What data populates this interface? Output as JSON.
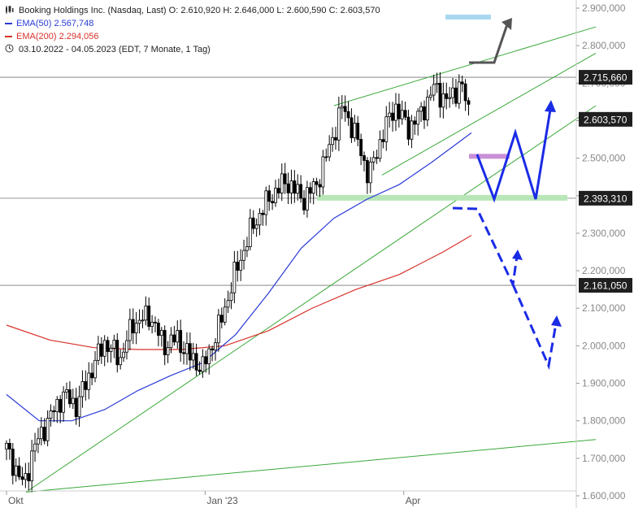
{
  "legend": {
    "title": "Booking Holdings Inc. (Nasdaq, Last)  O: 2.610,920  H: 2.646,000  L: 2.600,590  C: 2.603,570",
    "ema50": "EMA(50)  2.567,748",
    "ema200": "EMA(200)  2.294,056",
    "period": "03.10.2022 - 04.05.2023   (EDT, 7 Monate, 1 Tag)",
    "chart_icon": "candlestick-icon",
    "clock_icon": "clock-icon"
  },
  "colors": {
    "up": "#ffffff",
    "down": "#000000",
    "ema50": "#2a3bd8",
    "ema200": "#d8312a",
    "trend": "#3aa83a",
    "scenario_up": "#1a2be6",
    "scenario_down": "#1a2be6",
    "arrow_gray": "#555555",
    "target_box": "#a8d8f0",
    "zone_purple": "#c890d8",
    "zone_green": "#b8e6b8"
  },
  "chart_data": {
    "type": "candlestick",
    "title": "Booking Holdings Inc. (Nasdaq, Last)",
    "ylim": [
      1600000,
      2900000
    ],
    "y_ticks": [
      "2.900,000",
      "2.800,000",
      "2.700,000",
      "2.600,000",
      "2.500,000",
      "2.400,000",
      "2.300,000",
      "2.200,000",
      "2.100,000",
      "2.000,000",
      "1.900,000",
      "1.800,000",
      "1.700,000",
      "1.600,000"
    ],
    "y_tick_values": [
      2900000,
      2800000,
      2700000,
      2600000,
      2500000,
      2400000,
      2300000,
      2200000,
      2100000,
      2000000,
      1900000,
      1800000,
      1700000,
      1600000
    ],
    "x_ticks": [
      "Okt",
      "Jan '23",
      "Apr"
    ],
    "x_tick_days": [
      0,
      91,
      182
    ],
    "x_start": "2022-10-03",
    "x_end": "2023-05-04",
    "price_levels": [
      {
        "label": "2.715,660",
        "value": 2715660,
        "style": "line"
      },
      {
        "label": "2.603,570",
        "value": 2603570,
        "style": "current"
      },
      {
        "label": "2.393,310",
        "value": 2393310,
        "style": "line"
      },
      {
        "label": "2.161,050",
        "value": 2161050,
        "style": "line"
      }
    ],
    "anchors": [
      {
        "day": 0,
        "price": 1725000
      },
      {
        "day": 8,
        "price": 1625000
      },
      {
        "day": 12,
        "price": 1720000
      },
      {
        "day": 18,
        "price": 1790000
      },
      {
        "day": 26,
        "price": 1870000
      },
      {
        "day": 32,
        "price": 1840000
      },
      {
        "day": 40,
        "price": 1950000
      },
      {
        "day": 45,
        "price": 2010000
      },
      {
        "day": 52,
        "price": 1965000
      },
      {
        "day": 58,
        "price": 2060000
      },
      {
        "day": 66,
        "price": 2080000
      },
      {
        "day": 72,
        "price": 2000000
      },
      {
        "day": 78,
        "price": 2020000
      },
      {
        "day": 84,
        "price": 1970000
      },
      {
        "day": 90,
        "price": 1940000
      },
      {
        "day": 98,
        "price": 2060000
      },
      {
        "day": 104,
        "price": 2180000
      },
      {
        "day": 112,
        "price": 2310000
      },
      {
        "day": 120,
        "price": 2390000
      },
      {
        "day": 128,
        "price": 2440000
      },
      {
        "day": 136,
        "price": 2390000
      },
      {
        "day": 142,
        "price": 2430000
      },
      {
        "day": 148,
        "price": 2530000
      },
      {
        "day": 154,
        "price": 2640000
      },
      {
        "day": 160,
        "price": 2560000
      },
      {
        "day": 166,
        "price": 2450000
      },
      {
        "day": 172,
        "price": 2560000
      },
      {
        "day": 178,
        "price": 2640000
      },
      {
        "day": 184,
        "price": 2580000
      },
      {
        "day": 190,
        "price": 2620000
      },
      {
        "day": 196,
        "price": 2690000
      },
      {
        "day": 202,
        "price": 2650000
      },
      {
        "day": 208,
        "price": 2700000
      },
      {
        "day": 213,
        "price": 2603570
      }
    ],
    "ema50": [
      {
        "day": 0,
        "price": 1870000
      },
      {
        "day": 15,
        "price": 1800000
      },
      {
        "day": 30,
        "price": 1800000
      },
      {
        "day": 45,
        "price": 1830000
      },
      {
        "day": 60,
        "price": 1880000
      },
      {
        "day": 75,
        "price": 1920000
      },
      {
        "day": 90,
        "price": 1955000
      },
      {
        "day": 105,
        "price": 2030000
      },
      {
        "day": 120,
        "price": 2140000
      },
      {
        "day": 135,
        "price": 2260000
      },
      {
        "day": 150,
        "price": 2340000
      },
      {
        "day": 165,
        "price": 2390000
      },
      {
        "day": 180,
        "price": 2430000
      },
      {
        "day": 195,
        "price": 2490000
      },
      {
        "day": 213,
        "price": 2567748
      }
    ],
    "ema200": [
      {
        "day": 0,
        "price": 2055000
      },
      {
        "day": 20,
        "price": 2015000
      },
      {
        "day": 40,
        "price": 1995000
      },
      {
        "day": 60,
        "price": 1990000
      },
      {
        "day": 80,
        "price": 1990000
      },
      {
        "day": 100,
        "price": 2000000
      },
      {
        "day": 120,
        "price": 2040000
      },
      {
        "day": 140,
        "price": 2100000
      },
      {
        "day": 160,
        "price": 2150000
      },
      {
        "day": 180,
        "price": 2190000
      },
      {
        "day": 200,
        "price": 2250000
      },
      {
        "day": 213,
        "price": 2294056
      }
    ]
  }
}
